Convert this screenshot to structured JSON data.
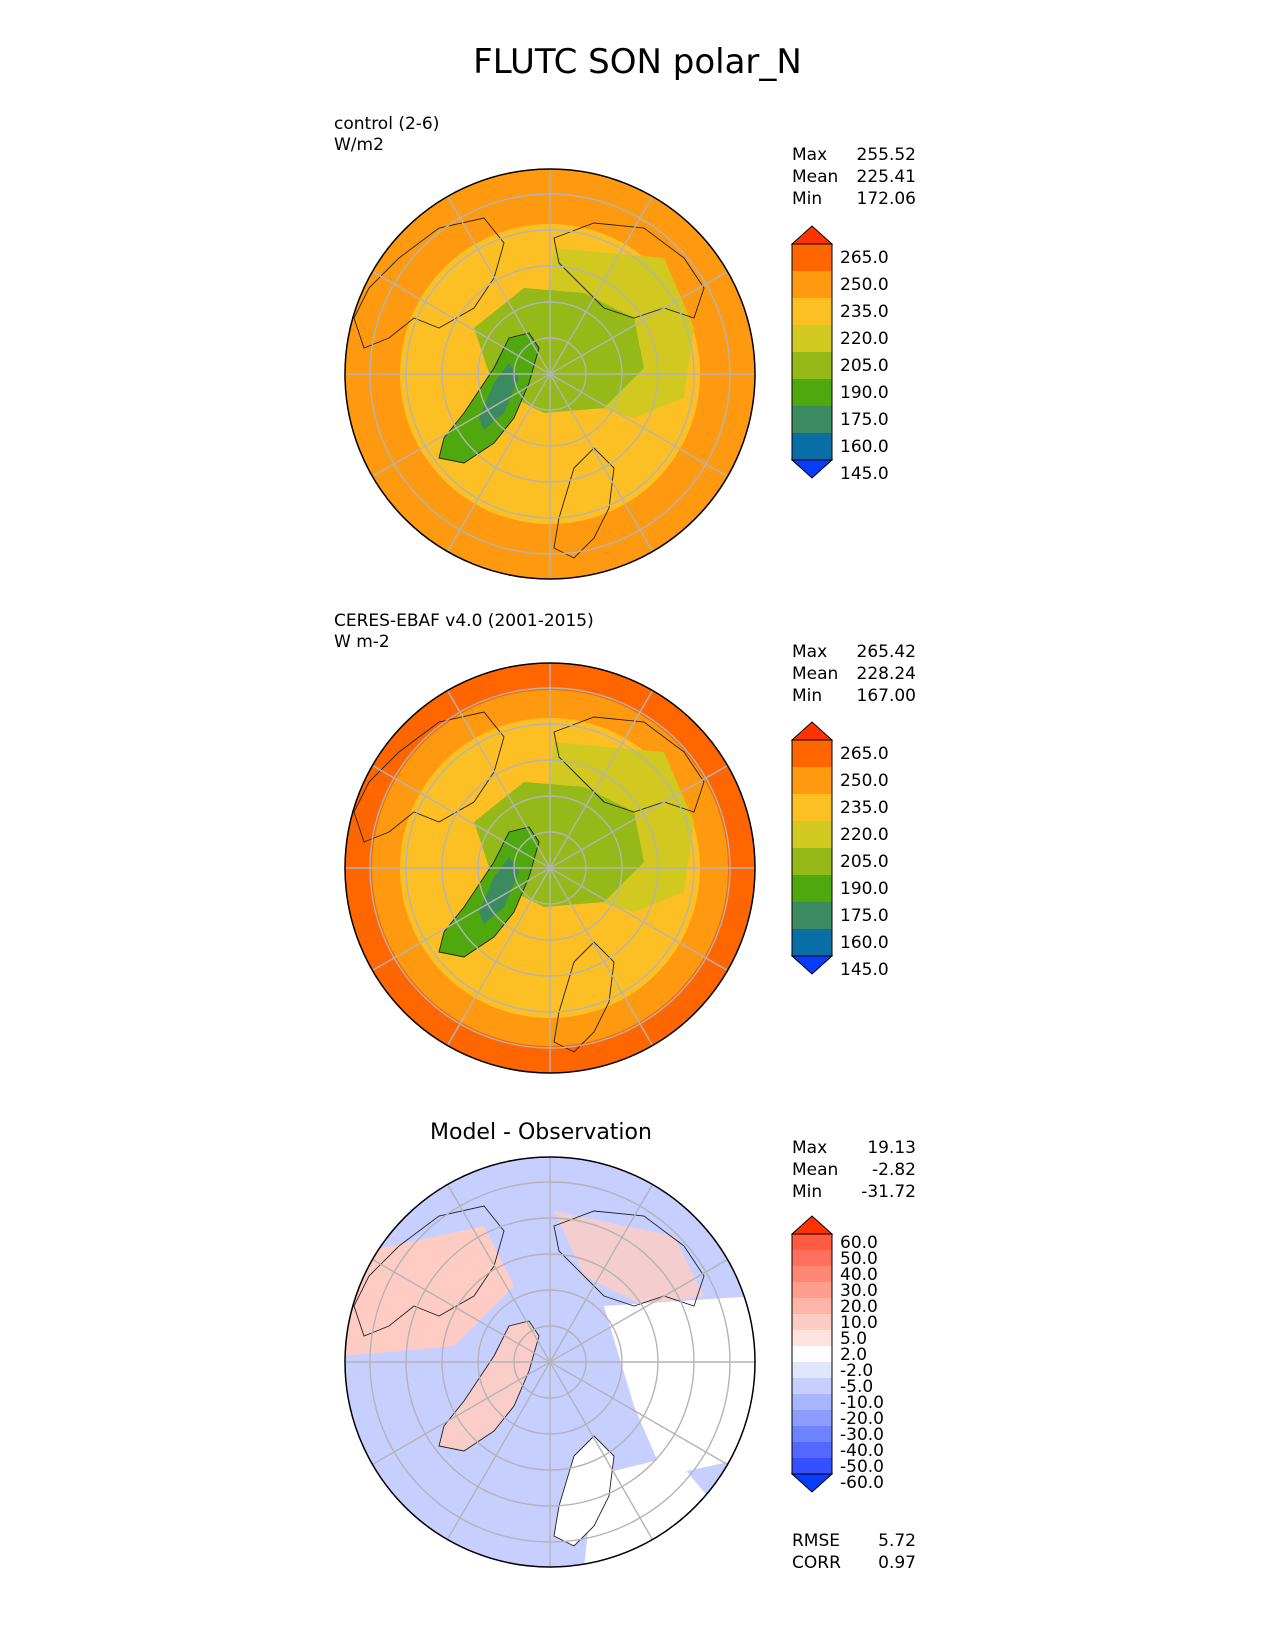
{
  "title": "FLUTC SON polar_N",
  "panels": [
    {
      "id": "control",
      "title_line1": "control (2-6)",
      "title_line2": "W/m2",
      "stats": [
        {
          "label": "Max",
          "value": "255.52"
        },
        {
          "label": "Mean",
          "value": "225.41"
        },
        {
          "label": "Min",
          "value": "172.06"
        }
      ]
    },
    {
      "id": "obs",
      "title_line1": "CERES-EBAF v4.0 (2001-2015)",
      "title_line2": "W m-2",
      "stats": [
        {
          "label": "Max",
          "value": "265.42"
        },
        {
          "label": "Mean",
          "value": "228.24"
        },
        {
          "label": "Min",
          "value": "167.00"
        }
      ]
    },
    {
      "id": "diff",
      "title_center": "Model - Observation",
      "stats": [
        {
          "label": "Max",
          "value": "19.13"
        },
        {
          "label": "Mean",
          "value": "-2.82"
        },
        {
          "label": "Min",
          "value": "-31.72"
        }
      ],
      "metrics": [
        {
          "label": "RMSE",
          "value": "5.72"
        },
        {
          "label": "CORR",
          "value": "0.97"
        }
      ]
    }
  ],
  "colorbar_main": {
    "labels": [
      "265.0",
      "250.0",
      "235.0",
      "220.0",
      "205.0",
      "190.0",
      "175.0",
      "160.0",
      "145.0"
    ],
    "colors": [
      "#ff3300",
      "#ff6600",
      "#ff9a10",
      "#fcc024",
      "#d2c920",
      "#94b918",
      "#4ea80e",
      "#3c8a60",
      "#0a6ea6",
      "#0a3cff"
    ]
  },
  "colorbar_diff": {
    "labels": [
      "60.0",
      "50.0",
      "40.0",
      "30.0",
      "20.0",
      "10.0",
      "5.0",
      "2.0",
      "-2.0",
      "-5.0",
      "-10.0",
      "-20.0",
      "-30.0",
      "-40.0",
      "-50.0",
      "-60.0"
    ],
    "colors": [
      "#ff3300",
      "#ff5a42",
      "#ff6f5b",
      "#ff8774",
      "#ff9e8d",
      "#ffb4a8",
      "#ffccc3",
      "#ffe4de",
      "#ffffff",
      "#e1e6ff",
      "#c6cfff",
      "#a8b5ff",
      "#8c9cff",
      "#6f83ff",
      "#5268ff",
      "#3550ff",
      "#0a3cff"
    ]
  },
  "map_colors": {
    "ring_outer": "#ff9a10",
    "ring_mid": "#fcc024",
    "ring_inner": "#d2c920",
    "center": "#94b918",
    "greenland": "#4ea80e",
    "greenland_core": "#3c8a60",
    "obs_outer": "#ff6600",
    "diff_base": "#c6cfff",
    "diff_pos": "#ffccc3",
    "diff_white": "#ffffff"
  }
}
